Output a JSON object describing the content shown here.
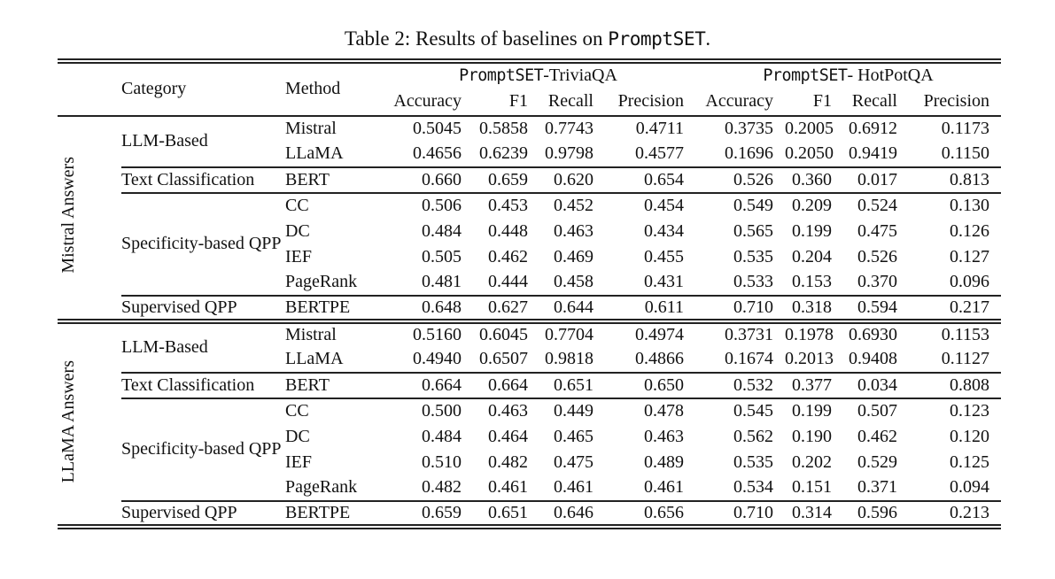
{
  "page": {
    "background": "#ffffff",
    "text_color": "#111111",
    "rule_color": "#222222"
  },
  "title": {
    "prefix": "Table 2: Results of baselines on ",
    "dataset": "PromptSET",
    "suffix": "."
  },
  "table": {
    "headers": {
      "category": "Category",
      "method": "Method",
      "group1": {
        "dataset": "PromptSET",
        "rest": "-TriviaQA"
      },
      "group2": {
        "dataset": "PromptSET",
        "rest": "- HotPotQA"
      },
      "metrics": [
        "Accuracy",
        "F1",
        "Recall",
        "Precision",
        "Accuracy",
        "F1",
        "Recall",
        "Precision"
      ]
    },
    "blocks": [
      {
        "label": "Mistral Answers",
        "rows": [
          {
            "category": "LLM-Based",
            "method": "Mistral",
            "values": [
              "0.5045",
              "0.5858",
              "0.7743",
              "0.4711",
              "0.3735",
              "0.2005",
              "0.6912",
              "0.1173"
            ]
          },
          {
            "method": "LLaMA",
            "values": [
              "0.4656",
              "0.6239",
              "0.9798",
              "0.4577",
              "0.1696",
              "0.2050",
              "0.9419",
              "0.1150"
            ]
          },
          {
            "category": "Text Classification",
            "method": "BERT",
            "values": [
              "0.660",
              "0.659",
              "0.620",
              "0.654",
              "0.526",
              "0.360",
              "0.017",
              "0.813"
            ]
          },
          {
            "category": "Specificity-based QPP",
            "method": "CC",
            "values": [
              "0.506",
              "0.453",
              "0.452",
              "0.454",
              "0.549",
              "0.209",
              "0.524",
              "0.130"
            ]
          },
          {
            "method": "DC",
            "values": [
              "0.484",
              "0.448",
              "0.463",
              "0.434",
              "0.565",
              "0.199",
              "0.475",
              "0.126"
            ]
          },
          {
            "method": "IEF",
            "values": [
              "0.505",
              "0.462",
              "0.469",
              "0.455",
              "0.535",
              "0.204",
              "0.526",
              "0.127"
            ]
          },
          {
            "method": "PageRank",
            "values": [
              "0.481",
              "0.444",
              "0.458",
              "0.431",
              "0.533",
              "0.153",
              "0.370",
              "0.096"
            ]
          },
          {
            "category": "Supervised QPP",
            "method": "BERTPE",
            "values": [
              "0.648",
              "0.627",
              "0.644",
              "0.611",
              "0.710",
              "0.318",
              "0.594",
              "0.217"
            ]
          }
        ]
      },
      {
        "label": "LLaMA Answers",
        "rows": [
          {
            "category": "LLM-Based",
            "method": "Mistral",
            "values": [
              "0.5160",
              "0.6045",
              "0.7704",
              "0.4974",
              "0.3731",
              "0.1978",
              "0.6930",
              "0.1153"
            ]
          },
          {
            "method": "LLaMA",
            "values": [
              "0.4940",
              "0.6507",
              "0.9818",
              "0.4866",
              "0.1674",
              "0.2013",
              "0.9408",
              "0.1127"
            ]
          },
          {
            "category": "Text Classification",
            "method": "BERT",
            "values": [
              "0.664",
              "0.664",
              "0.651",
              "0.650",
              "0.532",
              "0.377",
              "0.034",
              "0.808"
            ]
          },
          {
            "category": "Specificity-based QPP",
            "method": "CC",
            "values": [
              "0.500",
              "0.463",
              "0.449",
              "0.478",
              "0.545",
              "0.199",
              "0.507",
              "0.123"
            ]
          },
          {
            "method": "DC",
            "values": [
              "0.484",
              "0.464",
              "0.465",
              "0.463",
              "0.562",
              "0.190",
              "0.462",
              "0.120"
            ]
          },
          {
            "method": "IEF",
            "values": [
              "0.510",
              "0.482",
              "0.475",
              "0.489",
              "0.535",
              "0.202",
              "0.529",
              "0.125"
            ]
          },
          {
            "method": "PageRank",
            "values": [
              "0.482",
              "0.461",
              "0.461",
              "0.461",
              "0.534",
              "0.151",
              "0.371",
              "0.094"
            ]
          },
          {
            "category": "Supervised QPP",
            "method": "BERTPE",
            "values": [
              "0.659",
              "0.651",
              "0.646",
              "0.656",
              "0.710",
              "0.314",
              "0.596",
              "0.213"
            ]
          }
        ]
      }
    ]
  }
}
